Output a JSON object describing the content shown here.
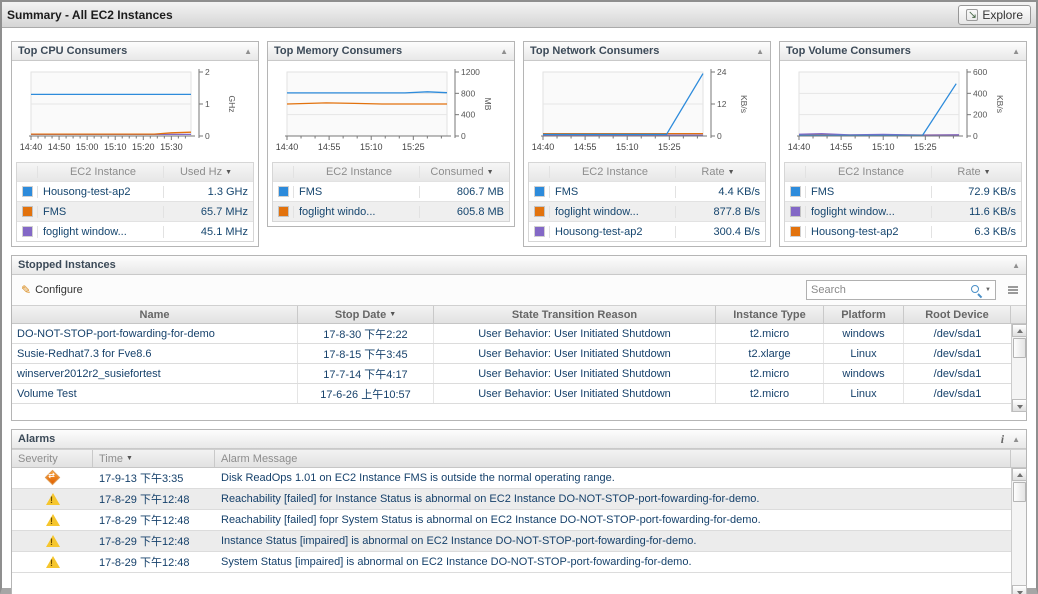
{
  "header": {
    "title": "Summary - All EC2 Instances",
    "explore_label": "Explore"
  },
  "icons": {
    "explore": "↘",
    "collapse": "▲",
    "sort_desc": "▼",
    "info": "i",
    "pencil": "✎"
  },
  "colors": {
    "blue": "#2d8bdb",
    "orange": "#e2720d",
    "purple": "#8368c6"
  },
  "panels": [
    {
      "title": "Top CPU Consumers",
      "chart_data": {
        "type": "line",
        "ylabel": "GHz",
        "ylim": [
          0,
          2
        ],
        "y_ticks": [
          0,
          1,
          2
        ],
        "x_range": [
          0,
          57
        ],
        "minor_tick_step": 2.5,
        "x_tick_minutes": [
          0,
          10,
          20,
          30,
          40,
          50
        ],
        "x_tick_labels": [
          "14:40",
          "14:50",
          "15:00",
          "15:10",
          "15:20",
          "15:30"
        ],
        "series": [
          {
            "name": "Housong-test-ap2",
            "color_key": "blue",
            "points": [
              [
                0,
                1.3
              ],
              [
                57,
                1.3
              ]
            ]
          },
          {
            "name": "foglight window...",
            "color_key": "purple",
            "points": [
              [
                0,
                0.05
              ],
              [
                57,
                0.05
              ]
            ]
          },
          {
            "name": "FMS",
            "color_key": "orange",
            "points": [
              [
                0,
                0.06
              ],
              [
                44,
                0.06
              ],
              [
                50,
                0.1
              ],
              [
                57,
                0.12
              ]
            ]
          }
        ]
      },
      "table": {
        "instance_header": "EC2 Instance",
        "value_header": "Used Hz",
        "rows": [
          {
            "color_key": "blue",
            "name": "Housong-test-ap2",
            "value": "1.3 GHz"
          },
          {
            "color_key": "orange",
            "name": "FMS",
            "value": "65.7 MHz"
          },
          {
            "color_key": "purple",
            "name": "foglight window...",
            "value": "45.1 MHz"
          }
        ]
      }
    },
    {
      "title": "Top Memory Consumers",
      "chart_data": {
        "type": "line",
        "ylabel": "MB",
        "ylim": [
          0,
          1200
        ],
        "y_ticks": [
          0,
          400,
          800,
          1200
        ],
        "x_range": [
          0,
          57
        ],
        "minor_tick_step": 5,
        "x_tick_minutes": [
          0,
          15,
          30,
          45
        ],
        "x_tick_labels": [
          "14:40",
          "14:55",
          "15:10",
          "15:25"
        ],
        "series": [
          {
            "name": "FMS",
            "color_key": "blue",
            "points": [
              [
                0,
                808
              ],
              [
                42,
                808
              ],
              [
                50,
                828
              ],
              [
                57,
                812
              ]
            ]
          },
          {
            "name": "foglight windo...",
            "color_key": "orange",
            "points": [
              [
                0,
                600
              ],
              [
                14,
                620
              ],
              [
                24,
                612
              ],
              [
                34,
                600
              ],
              [
                57,
                600
              ]
            ]
          }
        ]
      },
      "table": {
        "instance_header": "EC2 Instance",
        "value_header": "Consumed",
        "rows": [
          {
            "color_key": "blue",
            "name": "FMS",
            "value": "806.7 MB"
          },
          {
            "color_key": "orange",
            "name": "foglight windo...",
            "value": "605.8 MB"
          }
        ]
      }
    },
    {
      "title": "Top Network Consumers",
      "chart_data": {
        "type": "line",
        "ylabel": "KB/s",
        "ylim": [
          0,
          24
        ],
        "y_ticks": [
          0,
          12,
          24
        ],
        "x_range": [
          0,
          57
        ],
        "minor_tick_step": 5,
        "x_tick_minutes": [
          0,
          15,
          30,
          45
        ],
        "x_tick_labels": [
          "14:40",
          "14:55",
          "15:10",
          "15:25"
        ],
        "series": [
          {
            "name": "Housong-test-ap2",
            "color_key": "purple",
            "points": [
              [
                0,
                0.35
              ],
              [
                57,
                0.35
              ]
            ]
          },
          {
            "name": "foglight window...",
            "color_key": "orange",
            "points": [
              [
                0,
                0.9
              ],
              [
                57,
                0.9
              ]
            ]
          },
          {
            "name": "FMS",
            "color_key": "blue",
            "points": [
              [
                0,
                0.6
              ],
              [
                44,
                0.6
              ],
              [
                57,
                23.4
              ]
            ]
          }
        ]
      },
      "table": {
        "instance_header": "EC2 Instance",
        "value_header": "Rate",
        "rows": [
          {
            "color_key": "blue",
            "name": "FMS",
            "value": "4.4 KB/s"
          },
          {
            "color_key": "orange",
            "name": "foglight window...",
            "value": "877.8 B/s"
          },
          {
            "color_key": "purple",
            "name": "Housong-test-ap2",
            "value": "300.4 B/s"
          }
        ]
      }
    },
    {
      "title": "Top Volume Consumers",
      "chart_data": {
        "type": "line",
        "ylabel": "KB/s",
        "ylim": [
          0,
          600
        ],
        "y_ticks": [
          0,
          200,
          400,
          600
        ],
        "x_range": [
          0,
          57
        ],
        "minor_tick_step": 5,
        "x_tick_minutes": [
          0,
          15,
          30,
          45
        ],
        "x_tick_labels": [
          "14:40",
          "14:55",
          "15:10",
          "15:25"
        ],
        "series": [
          {
            "name": "Housong-test-ap2",
            "color_key": "orange",
            "points": [
              [
                0,
                9
              ],
              [
                57,
                9
              ]
            ]
          },
          {
            "name": "foglight window...",
            "color_key": "purple",
            "points": [
              [
                0,
                16
              ],
              [
                8,
                22
              ],
              [
                18,
                10
              ],
              [
                30,
                15
              ],
              [
                44,
                8
              ],
              [
                57,
                11
              ]
            ]
          },
          {
            "name": "FMS",
            "color_key": "blue",
            "points": [
              [
                0,
                6
              ],
              [
                44,
                6
              ],
              [
                56,
                490
              ]
            ]
          }
        ]
      },
      "table": {
        "instance_header": "EC2 Instance",
        "value_header": "Rate",
        "rows": [
          {
            "color_key": "blue",
            "name": "FMS",
            "value": "72.9 KB/s"
          },
          {
            "color_key": "purple",
            "name": "foglight window...",
            "value": "11.6 KB/s"
          },
          {
            "color_key": "orange",
            "name": "Housong-test-ap2",
            "value": "6.3 KB/s"
          }
        ]
      }
    }
  ],
  "stopped": {
    "title": "Stopped Instances",
    "configure_label": "Configure",
    "search_placeholder": "Search",
    "columns": {
      "name": "Name",
      "stop_date": "Stop Date",
      "reason": "State Transition Reason",
      "type": "Instance Type",
      "platform": "Platform",
      "root_device": "Root Device"
    },
    "sorted_column": "Stop Date",
    "rows": [
      {
        "name": "DO-NOT-STOP-port-fowarding-for-demo",
        "stop_date": "17-8-30 下午2:22",
        "reason": "User Behavior: User Initiated Shutdown",
        "type": "t2.micro",
        "platform": "windows",
        "root_device": "/dev/sda1"
      },
      {
        "name": "Susie-Redhat7.3 for Fve8.6",
        "stop_date": "17-8-15 下午3:45",
        "reason": "User Behavior: User Initiated Shutdown",
        "type": "t2.xlarge",
        "platform": "Linux",
        "root_device": "/dev/sda1"
      },
      {
        "name": "winserver2012r2_susiefortest",
        "stop_date": "17-7-14 下午4:17",
        "reason": "User Behavior: User Initiated Shutdown",
        "type": "t2.micro",
        "platform": "windows",
        "root_device": "/dev/sda1"
      },
      {
        "name": "Volume Test",
        "stop_date": "17-6-26 上午10:57",
        "reason": "User Behavior: User Initiated Shutdown",
        "type": "t2.micro",
        "platform": "Linux",
        "root_device": "/dev/sda1"
      }
    ]
  },
  "alarms": {
    "title": "Alarms",
    "columns": {
      "severity": "Severity",
      "time": "Time",
      "message": "Alarm Message"
    },
    "sorted_column": "Time",
    "rows": [
      {
        "severity": "critical",
        "time": "17-9-13 下午3:35",
        "message": "Disk ReadOps 1.01 on EC2 Instance FMS is outside the normal operating range."
      },
      {
        "severity": "warning",
        "time": "17-8-29 下午12:48",
        "message": "Reachability [failed] for Instance Status is abnormal on EC2 Instance DO-NOT-STOP-port-fowarding-for-demo."
      },
      {
        "severity": "warning",
        "time": "17-8-29 下午12:48",
        "message": "Reachability [failed] fopr System Status is abnormal on EC2 Instance DO-NOT-STOP-port-fowarding-for-demo."
      },
      {
        "severity": "warning",
        "time": "17-8-29 下午12:48",
        "message": "Instance Status [impaired] is abnormal on EC2 Instance DO-NOT-STOP-port-fowarding-for-demo."
      },
      {
        "severity": "warning",
        "time": "17-8-29 下午12:48",
        "message": "System Status [impaired] is abnormal on EC2 Instance DO-NOT-STOP-port-fowarding-for-demo."
      }
    ]
  }
}
